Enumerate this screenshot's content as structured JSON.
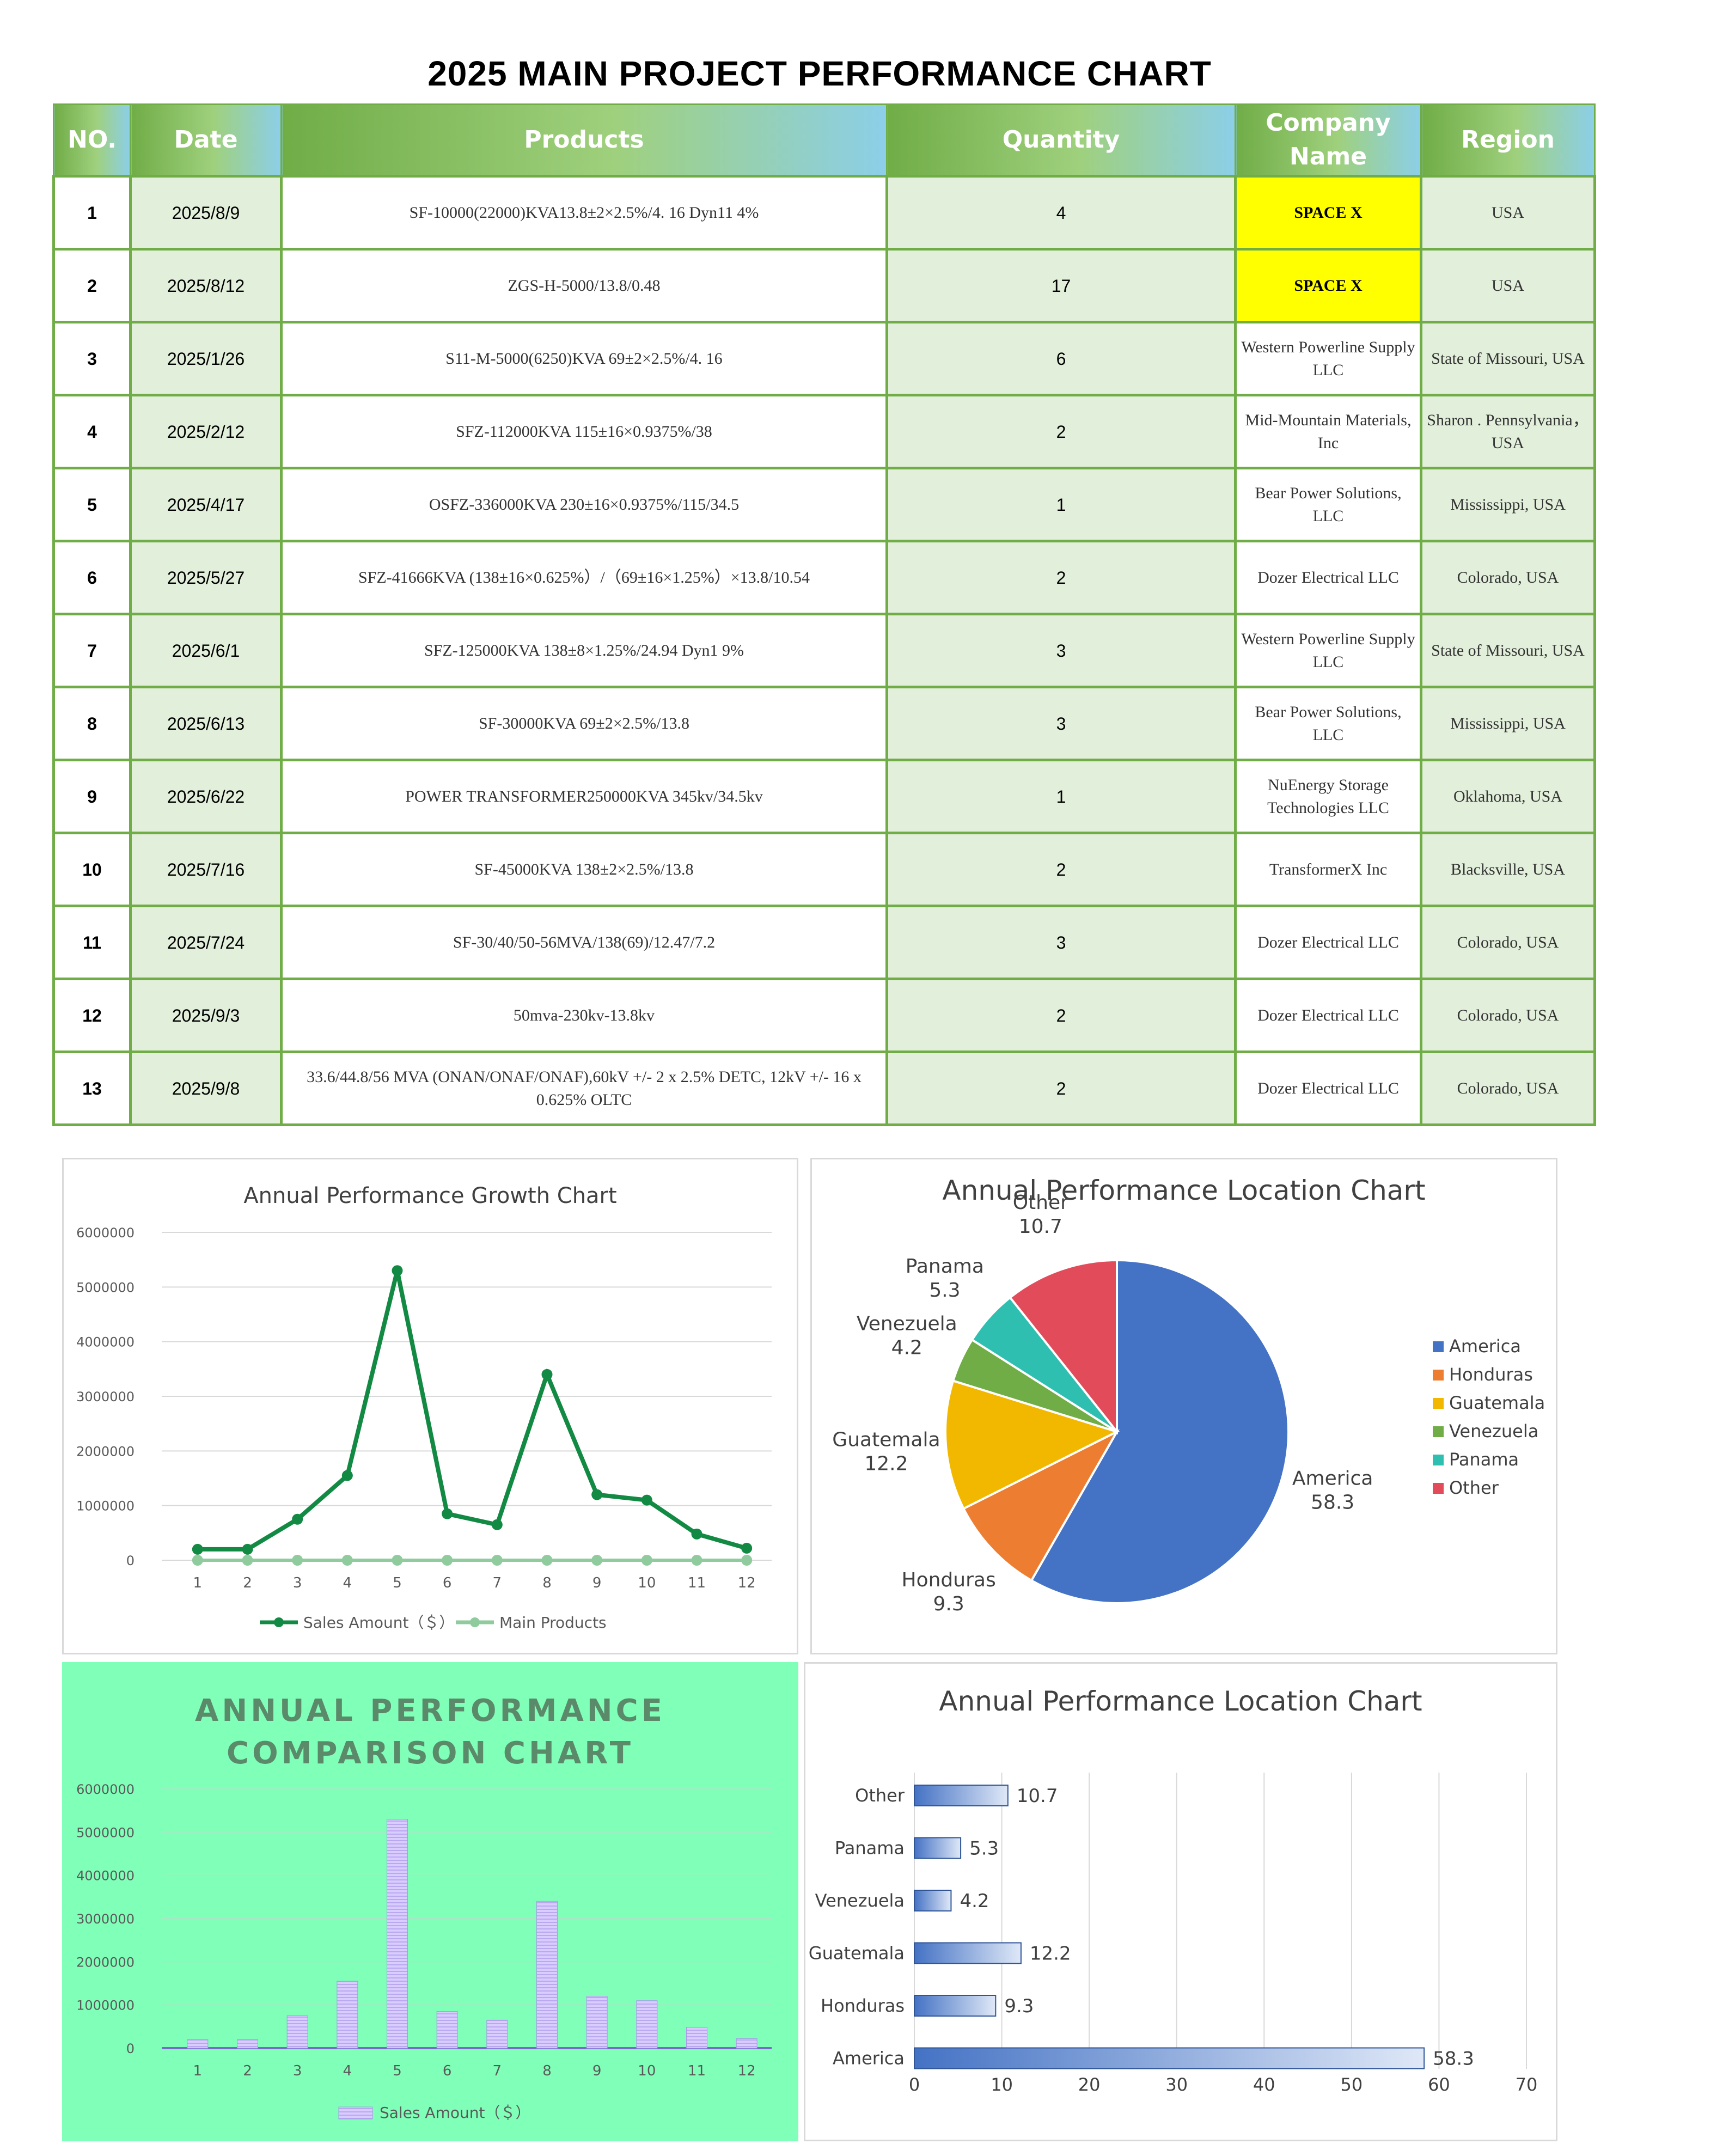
{
  "page_title": "2025 MAIN PROJECT PERFORMANCE CHART",
  "table": {
    "headers": {
      "no": "NO.",
      "date": "Date",
      "products": "Products",
      "quantity": "Quantity",
      "company": "Company Name",
      "region": "Region"
    },
    "rows": [
      {
        "no": "1",
        "date": "2025/8/9",
        "product": "SF-10000(22000)KVA13.8±2×2.5%/4. 16 Dyn11 4%",
        "quantity": "4",
        "company": "SPACE X",
        "region": "USA",
        "highlight": true
      },
      {
        "no": "2",
        "date": "2025/8/12",
        "product": "ZGS-H-5000/13.8/0.48",
        "quantity": "17",
        "company": "SPACE X",
        "region": "USA",
        "highlight": true
      },
      {
        "no": "3",
        "date": "2025/1/26",
        "product": "S11-M-5000(6250)KVA 69±2×2.5%/4. 16",
        "quantity": "6",
        "company": "Western Powerline Supply LLC",
        "region": "State of Missouri, USA"
      },
      {
        "no": "4",
        "date": "2025/2/12",
        "product": "SFZ-112000KVA 115±16×0.9375%/38",
        "quantity": "2",
        "company": "Mid-Mountain Materials, Inc",
        "region": "Sharon . Pennsylvania，USA"
      },
      {
        "no": "5",
        "date": "2025/4/17",
        "product": "OSFZ-336000KVA 230±16×0.9375%/115/34.5",
        "quantity": "1",
        "company": "Bear Power Solutions, LLC",
        "region": "Mississippi, USA"
      },
      {
        "no": "6",
        "date": "2025/5/27",
        "product": "SFZ-41666KVA (138±16×0.625%）/（69±16×1.25%）×13.8/10.54",
        "quantity": "2",
        "company": "Dozer Electrical LLC",
        "region": "Colorado, USA"
      },
      {
        "no": "7",
        "date": "2025/6/1",
        "product": "SFZ-125000KVA 138±8×1.25%/24.94 Dyn1 9%",
        "quantity": "3",
        "company": "Western Powerline Supply LLC",
        "region": "State of Missouri, USA"
      },
      {
        "no": "8",
        "date": "2025/6/13",
        "product": "SF-30000KVA 69±2×2.5%/13.8",
        "quantity": "3",
        "company": "Bear Power Solutions, LLC",
        "region": "Mississippi, USA"
      },
      {
        "no": "9",
        "date": "2025/6/22",
        "product": "POWER TRANSFORMER250000KVA 345kv/34.5kv",
        "quantity": "1",
        "company": "NuEnergy Storage Technologies LLC",
        "region": "Oklahoma, USA"
      },
      {
        "no": "10",
        "date": "2025/7/16",
        "product": "SF-45000KVA 138±2×2.5%/13.8",
        "quantity": "2",
        "company": "TransformerX Inc",
        "region": "Blacksville, USA"
      },
      {
        "no": "11",
        "date": "2025/7/24",
        "product": "SF-30/40/50-56MVA/138(69)/12.47/7.2",
        "quantity": "3",
        "company": "Dozer Electrical LLC",
        "region": "Colorado, USA"
      },
      {
        "no": "12",
        "date": "2025/9/3",
        "product": "50mva-230kv-13.8kv",
        "quantity": "2",
        "company": "Dozer Electrical LLC",
        "region": "Colorado, USA"
      },
      {
        "no": "13",
        "date": "2025/9/8",
        "product": "33.6/44.8/56 MVA (ONAN/ONAF/ONAF),60kV +/- 2 x 2.5% DETC, 12kV +/- 16 x 0.625% OLTC",
        "quantity": "2",
        "company": "Dozer Electrical LLC",
        "region": "Colorado, USA"
      }
    ]
  },
  "colors": {
    "table_border": "#70ad47",
    "table_cell_fill": "#e2efda",
    "highlight": "#ffff00",
    "line_sales": "#138a43",
    "line_main": "#8fcb9d",
    "col_bar": "#b9a7f0",
    "col_bg": "#80ffb8",
    "bar_h": "#4472c4"
  },
  "chart_data": [
    {
      "type": "line",
      "title": "Annual Performance Growth Chart",
      "x": [
        "1",
        "2",
        "3",
        "4",
        "5",
        "6",
        "7",
        "8",
        "9",
        "10",
        "11",
        "12"
      ],
      "series": [
        {
          "name": "Sales Amount（＄）",
          "values": [
            200000,
            200000,
            750000,
            1550000,
            5300000,
            850000,
            650000,
            3400000,
            1200000,
            1100000,
            480000,
            220000
          ]
        },
        {
          "name": "Main Products",
          "values": [
            4,
            4,
            4,
            4,
            4,
            4,
            4,
            4,
            4,
            4,
            4,
            4
          ]
        }
      ],
      "ylim": [
        0,
        6000000
      ],
      "yticks": [
        "0",
        "1000000",
        "2000000",
        "3000000",
        "4000000",
        "5000000",
        "6000000"
      ],
      "grid": true,
      "legend": "bottom"
    },
    {
      "type": "pie",
      "title": "Annual Performance Location Chart",
      "slices": [
        {
          "label": "America",
          "value": 58.3,
          "value_label": "58.3",
          "color": "#4472c4"
        },
        {
          "label": "Honduras",
          "value": 9.3,
          "value_label": "9.3",
          "color": "#ed7d31"
        },
        {
          "label": "Guatemala",
          "value": 12.2,
          "value_label": "12.2",
          "color": "#f2b800"
        },
        {
          "label": "Venezuela",
          "value": 4.2,
          "value_label": "4.2",
          "color": "#70ad47"
        },
        {
          "label": "Panama",
          "value": 5.3,
          "value_label": "5.3",
          "color": "#2ebfb0"
        },
        {
          "label": "Other",
          "value": 10.7,
          "value_label": "10.7",
          "color": "#e24b5a"
        }
      ],
      "legend": "right"
    },
    {
      "type": "bar",
      "title": "ANNUAL PERFORMANCE COMPARISON CHART",
      "title_lines": [
        "ANNUAL PERFORMANCE",
        "COMPARISON CHART"
      ],
      "categories": [
        "1",
        "2",
        "3",
        "4",
        "5",
        "6",
        "7",
        "8",
        "9",
        "10",
        "11",
        "12"
      ],
      "series": [
        {
          "name": "Sales Amount（＄）",
          "values": [
            200000,
            200000,
            750000,
            1550000,
            5300000,
            850000,
            650000,
            3400000,
            1200000,
            1100000,
            480000,
            220000
          ]
        }
      ],
      "ylim": [
        0,
        6000000
      ],
      "yticks": [
        "0",
        "1000000",
        "2000000",
        "3000000",
        "4000000",
        "5000000",
        "6000000"
      ],
      "grid": true,
      "legend": "bottom"
    },
    {
      "type": "bar",
      "orientation": "horizontal",
      "title": "Annual Performance Location Chart",
      "categories": [
        "Other",
        "Panama",
        "Venezuela",
        "Guatemala",
        "Honduras",
        "America"
      ],
      "values": [
        10.7,
        5.3,
        4.2,
        12.2,
        9.3,
        58.3
      ],
      "value_labels": [
        "10.7",
        "5.3",
        "4.2",
        "12.2",
        "9.3",
        "58.3"
      ],
      "xlim": [
        0,
        70
      ],
      "xticks": [
        "0",
        "10",
        "20",
        "30",
        "40",
        "50",
        "60",
        "70"
      ],
      "grid": true
    }
  ]
}
